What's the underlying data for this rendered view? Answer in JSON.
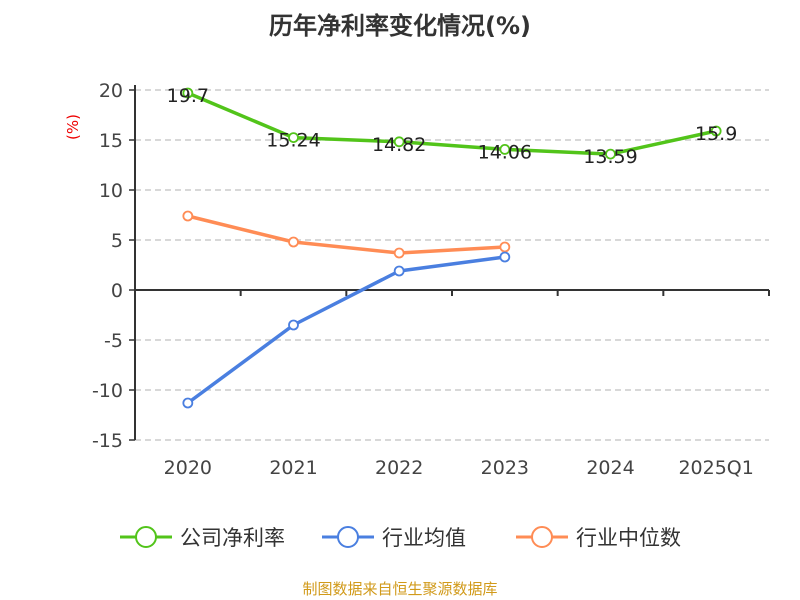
{
  "chart_data": {
    "type": "line",
    "title": "历年净利率变化情况(%)",
    "ylabel": "(%)",
    "xlabel": "",
    "categories": [
      "2020",
      "2021",
      "2022",
      "2023",
      "2024",
      "2025Q1"
    ],
    "ylim": [
      -15,
      20
    ],
    "yticks": [
      20,
      15,
      10,
      5,
      0,
      -5,
      -10,
      -15
    ],
    "grid": true,
    "legend_position": "bottom",
    "series": [
      {
        "name": "公司净利率",
        "color": "#52c41a",
        "values": [
          19.7,
          15.24,
          14.82,
          14.06,
          13.59,
          15.9
        ],
        "labels": [
          "19.7",
          "15.24",
          "14.82",
          "14.06",
          "13.59",
          "15.9"
        ]
      },
      {
        "name": "行业均值",
        "color": "#4a7fe0",
        "values": [
          -11.3,
          -3.5,
          1.9,
          3.3,
          null,
          null
        ]
      },
      {
        "name": "行业中位数",
        "color": "#ff8c55",
        "values": [
          7.4,
          4.8,
          3.7,
          4.3,
          null,
          null
        ]
      }
    ]
  },
  "footer": "制图数据来自恒生聚源数据库"
}
